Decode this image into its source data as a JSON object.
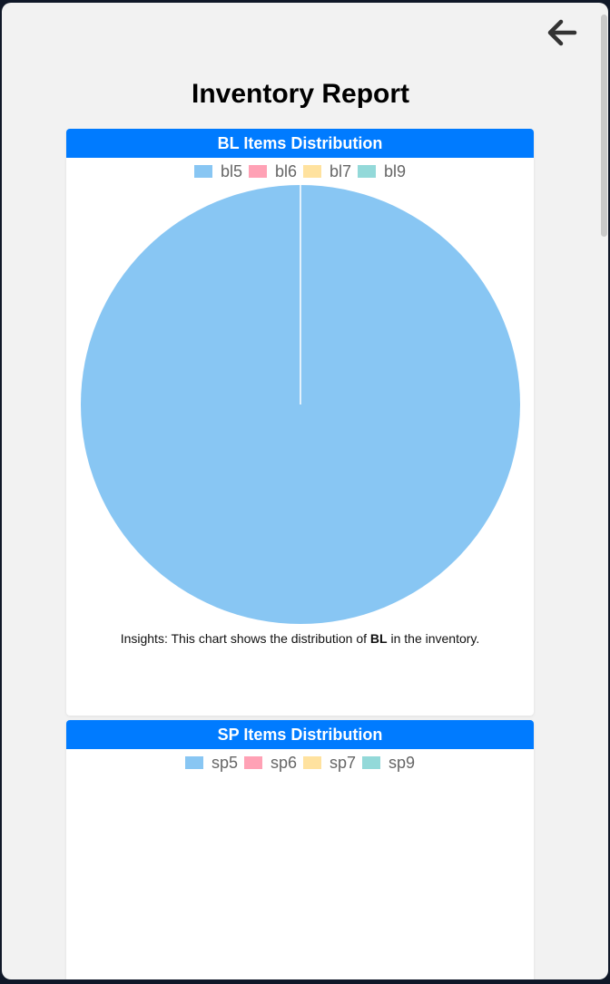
{
  "page": {
    "title": "Inventory Report"
  },
  "header": {
    "back_icon": "arrow-left-icon"
  },
  "colors": {
    "header": "#007bff",
    "series": [
      "#88c6f3",
      "#ffa1b5",
      "#ffe29f",
      "#93d9d9"
    ]
  },
  "bl_card": {
    "title": "BL Items Distribution",
    "insights_prefix": "Insights: This chart shows the distribution of ",
    "insights_bold": "BL",
    "insights_suffix": " in the inventory."
  },
  "sp_card": {
    "title": "SP Items Distribution"
  },
  "chart_data": [
    {
      "type": "pie",
      "title": "BL Items Distribution",
      "categories": [
        "bl5",
        "bl6",
        "bl7",
        "bl9"
      ],
      "values": [
        100,
        0,
        0,
        0
      ],
      "legend": "top"
    },
    {
      "type": "pie",
      "title": "SP Items Distribution",
      "categories": [
        "sp5",
        "sp6",
        "sp7",
        "sp9"
      ],
      "legend": "top"
    }
  ]
}
